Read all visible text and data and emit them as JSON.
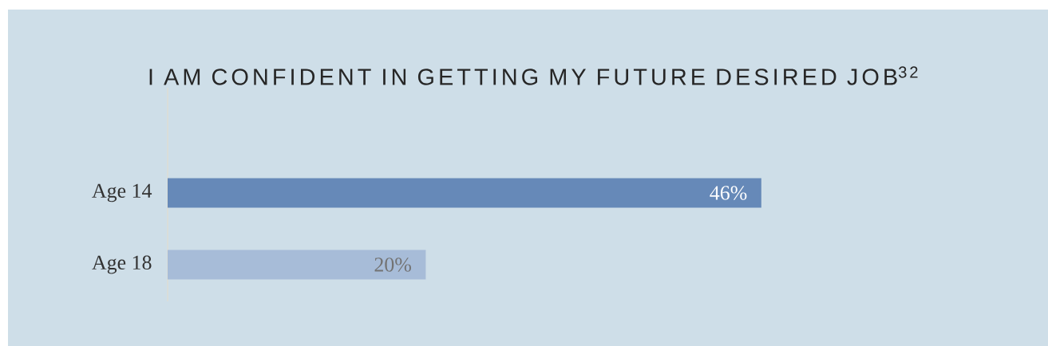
{
  "chart_data": {
    "type": "bar",
    "orientation": "horizontal",
    "title": "I AM CONFIDENT IN GETTING MY FUTURE DESIRED JOB$^{32}$",
    "categories": [
      "Age 14",
      "Age 18"
    ],
    "values": [
      46,
      20
    ],
    "colors": [
      "#6689b8",
      "#a7bcd8"
    ],
    "value_labels": [
      "46%",
      "20%"
    ]
  }
}
